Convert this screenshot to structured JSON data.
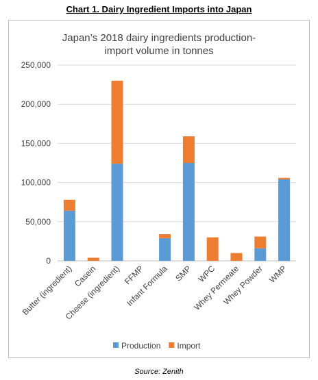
{
  "heading": "Chart 1. Dairy Ingredient Imports into Japan",
  "source": "Source: Zenith",
  "chart_data": {
    "type": "bar",
    "stacked": true,
    "title_lines": [
      "Japan’s 2018 dairy ingredients production-",
      "import volume in tonnes"
    ],
    "categories": [
      "Butter (ingredient)",
      "Casein",
      "Cheese (ingredient)",
      "FFMP",
      "Infant Formula",
      "SMP",
      "WPC",
      "Whey Permeate",
      "Whey Powder",
      "WMP"
    ],
    "series": [
      {
        "name": "Production",
        "color": "#5b9bd5",
        "values": [
          64000,
          0,
          124000,
          0,
          29000,
          125000,
          0,
          0,
          16000,
          104000
        ]
      },
      {
        "name": "Import",
        "color": "#ed7d31",
        "values": [
          14000,
          4000,
          106000,
          0,
          5000,
          34000,
          30000,
          10000,
          15000,
          2000
        ]
      }
    ],
    "ylim": [
      0,
      250000
    ],
    "yticks": [
      "0",
      "50,000",
      "100,000",
      "150,000",
      "200,000",
      "250,000"
    ],
    "grid": true,
    "legend_position": "bottom"
  }
}
